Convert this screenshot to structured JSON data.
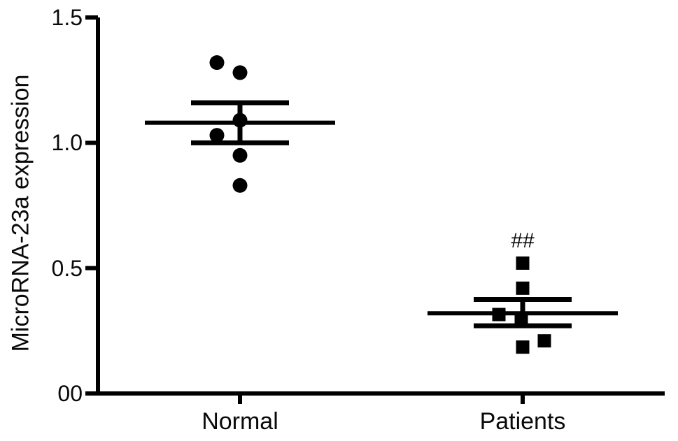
{
  "chart_data": {
    "type": "scatter",
    "title": "",
    "xlabel": "",
    "ylabel": "MicroRNA-23a expression",
    "ylim": [
      0,
      1.5
    ],
    "grid": false,
    "legend": "none",
    "marker_color": "#000000",
    "background_color": "#ffffff",
    "yticks": [
      {
        "value": 0,
        "label": "00"
      },
      {
        "value": 0.5,
        "label": "0.5"
      },
      {
        "value": 1.0,
        "label": "1.0"
      },
      {
        "value": 1.5,
        "label": "1.5"
      }
    ],
    "groups": [
      {
        "label": "Normal",
        "marker": "circle",
        "annotation": "",
        "mean": 1.08,
        "sem_upper": 1.16,
        "sem_lower": 1.0,
        "points": [
          {
            "value": 1.32,
            "jitter": -33
          },
          {
            "value": 1.28,
            "jitter": 0
          },
          {
            "value": 1.09,
            "jitter": 0
          },
          {
            "value": 1.03,
            "jitter": -33
          },
          {
            "value": 0.95,
            "jitter": 0
          },
          {
            "value": 0.83,
            "jitter": 0
          }
        ]
      },
      {
        "label": "Patients",
        "marker": "square",
        "annotation": "##",
        "mean": 0.32,
        "sem_upper": 0.375,
        "sem_lower": 0.27,
        "points": [
          {
            "value": 0.52,
            "jitter": 0
          },
          {
            "value": 0.42,
            "jitter": 0
          },
          {
            "value": 0.315,
            "jitter": -34
          },
          {
            "value": 0.29,
            "jitter": -2
          },
          {
            "value": 0.21,
            "jitter": 31
          },
          {
            "value": 0.185,
            "jitter": 0
          }
        ]
      }
    ]
  }
}
